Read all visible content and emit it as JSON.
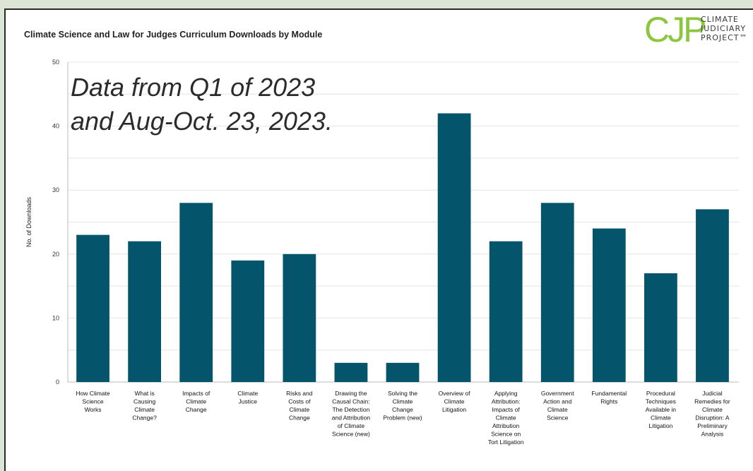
{
  "logo": {
    "mark": "CJP",
    "lines": [
      "CLIMATE",
      "JUDICIARY",
      "PROJECT™"
    ]
  },
  "annotation": {
    "line1": "Data from Q1 of 2023",
    "line2": "and Aug-Oct. 23, 2023."
  },
  "colors": {
    "bar": "#04546c",
    "grid": "#e4e4e4",
    "axis": "#bbbbbb",
    "logo": "#8cc63f"
  },
  "chart_data": {
    "type": "bar",
    "title": "Climate Science and Law for Judges Curriculum Downloads by Module",
    "xlabel": "",
    "ylabel": "No. of Downloads",
    "ylim": [
      0,
      50
    ],
    "yticks": [
      0,
      10,
      20,
      30,
      40,
      50
    ],
    "grid": true,
    "categories": [
      [
        "How Climate",
        "Science",
        "Works"
      ],
      [
        "What is",
        "Causing",
        "Climate",
        "Change?"
      ],
      [
        "Impacts of",
        "Climate",
        "Change"
      ],
      [
        "Climate",
        "Justice"
      ],
      [
        "Risks and",
        "Costs of",
        "Climate",
        "Change"
      ],
      [
        "Drawing the",
        "Causal Chain:",
        "The Detection",
        "and Attribution",
        "of Climate",
        "Science (new)"
      ],
      [
        "Solving the",
        "Climate",
        "Change",
        "Problem (new)"
      ],
      [
        "Overview of",
        "Climate",
        "Litigation"
      ],
      [
        "Applying",
        "Attribution:",
        "Impacts of",
        "Climate",
        "Attribution",
        "Science on",
        "Tort Litigation"
      ],
      [
        "Government",
        "Action and",
        "Climate",
        "Science"
      ],
      [
        "Fundamental",
        "Rights"
      ],
      [
        "Procedural",
        "Techniques",
        "Available in",
        "Climate",
        "Litigation"
      ],
      [
        "Judicial",
        "Remedies for",
        "Climate",
        "Disruption: A",
        "Preliminary",
        "Analysis"
      ]
    ],
    "values": [
      23,
      22,
      28,
      19,
      20,
      3,
      3,
      42,
      22,
      28,
      24,
      17,
      27
    ]
  }
}
